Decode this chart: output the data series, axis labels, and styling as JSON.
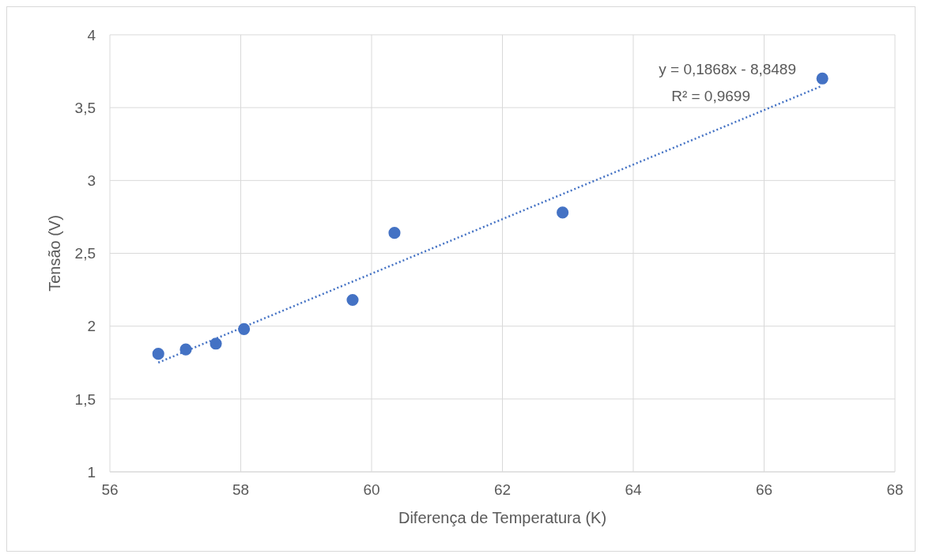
{
  "chart_data": {
    "type": "scatter",
    "xlabel": "Diferença de Temperatura (K)",
    "ylabel": "Tensão (V)",
    "x": [
      56.74,
      57.16,
      57.62,
      58.05,
      59.71,
      60.35,
      62.92,
      66.89
    ],
    "series": [
      {
        "type": "scatter",
        "color": "#4472c4",
        "values": [
          1.81,
          1.84,
          1.88,
          1.98,
          2.18,
          2.64,
          2.78,
          3.7
        ],
        "marker": "circle"
      },
      {
        "type": "line",
        "color": "#4472c4",
        "x": [
          56.74,
          66.89
        ],
        "values": [
          1.75,
          3.65
        ],
        "line_style": "dotted",
        "marker": "none"
      }
    ],
    "xlim": [
      56,
      68
    ],
    "xticks": [
      56,
      58,
      60,
      62,
      64,
      66,
      68
    ],
    "ylim": [
      1,
      4
    ],
    "yticks": [
      1,
      {
        "value": 1.5,
        "label": "1,5"
      },
      2,
      {
        "value": 2.5,
        "label": "2,5"
      },
      3,
      {
        "value": 3.5,
        "label": "3,5"
      },
      4
    ],
    "grid": true,
    "annotations": [
      "y = 0,1868x - 8,8489",
      "R² = 0,9699"
    ]
  }
}
